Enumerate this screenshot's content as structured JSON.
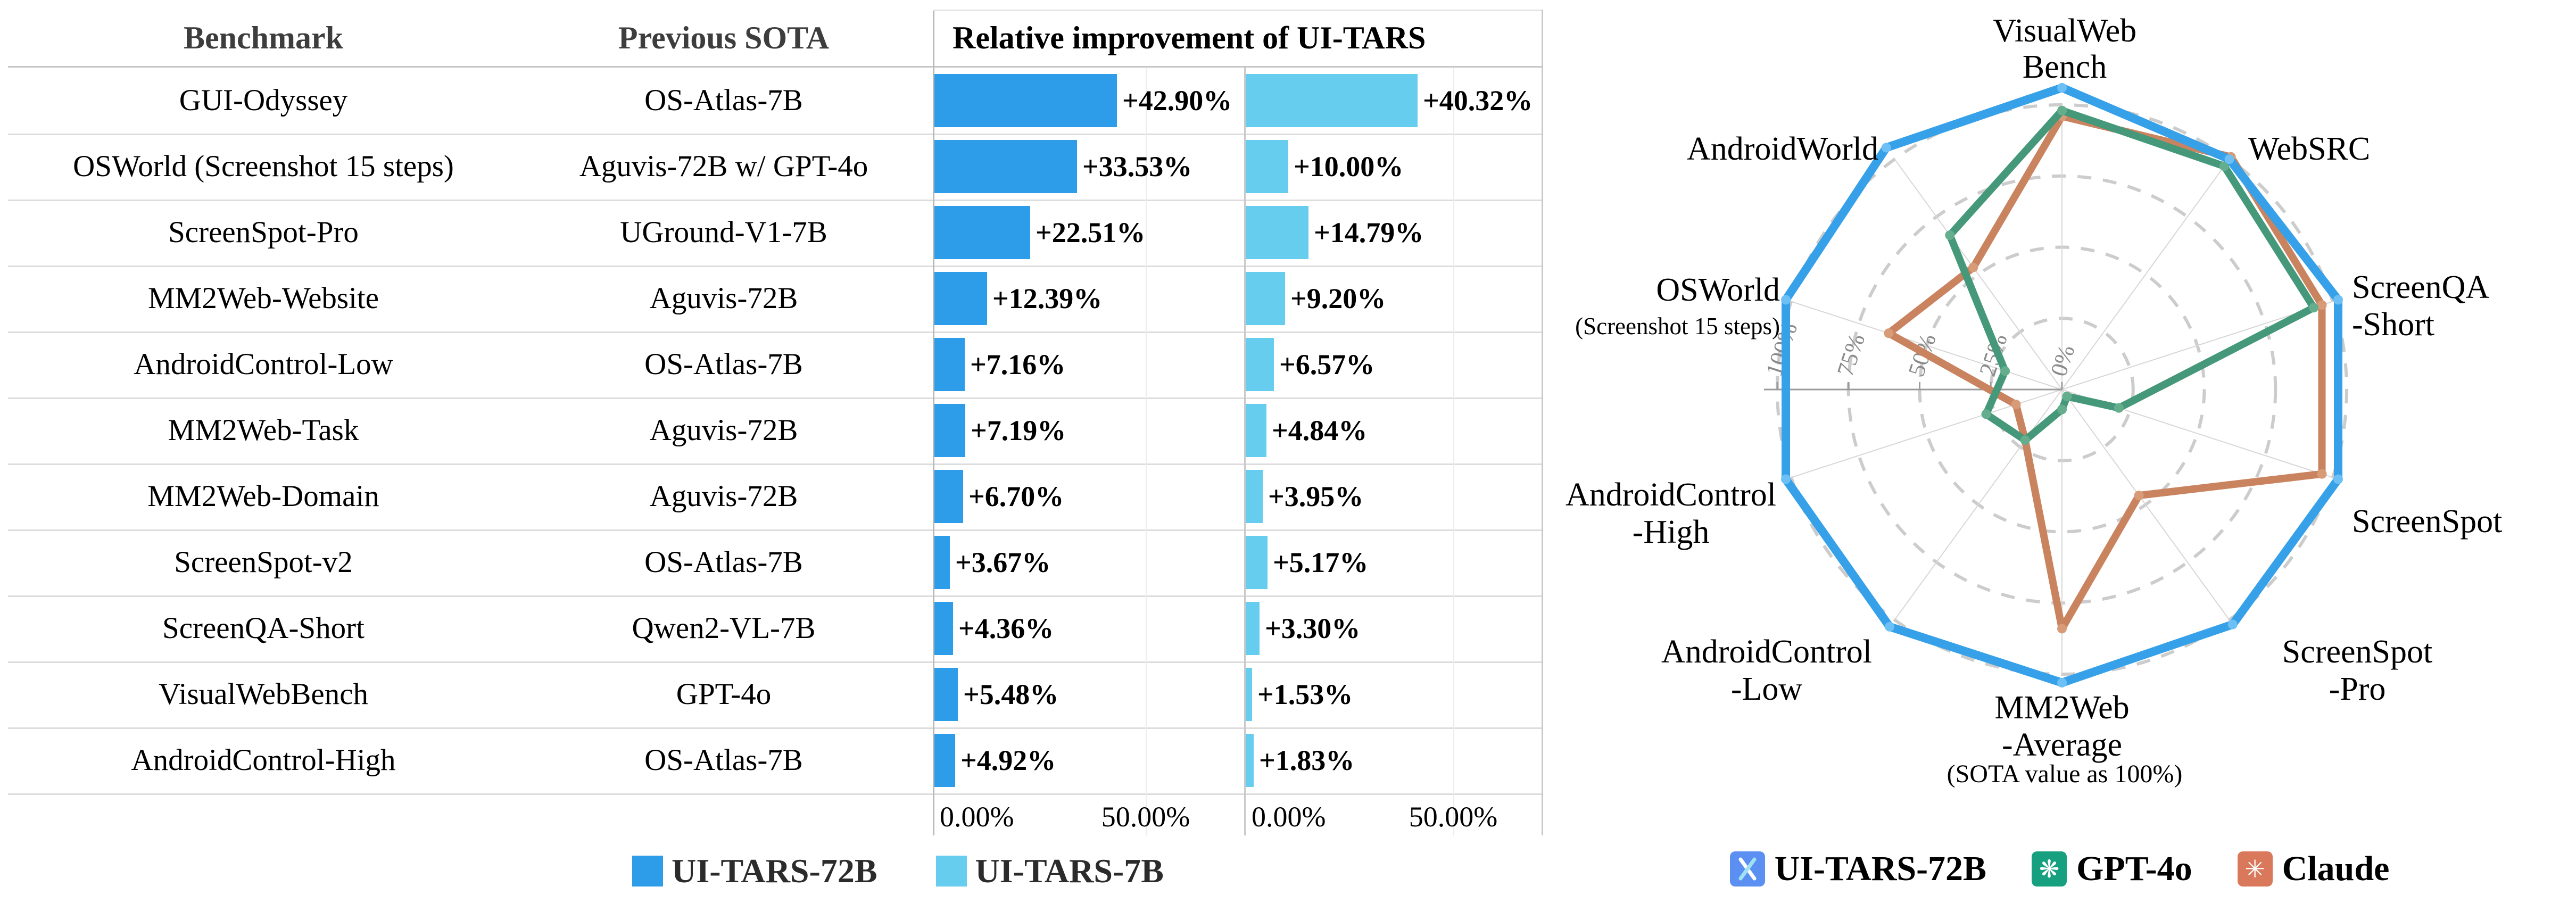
{
  "colors": {
    "ui_tars_72b_bar": "#2d9ce9",
    "ui_tars_7b_bar": "#66cdef",
    "radar_ui_tars": "#36a1e9",
    "radar_gpt4o": "#45987a",
    "radar_claude": "#c9835f",
    "icon_ui_tars": "#5c8ff2",
    "icon_gpt4o": "#16a07f",
    "icon_claude": "#d9785a"
  },
  "table": {
    "headers": {
      "benchmark": "Benchmark",
      "previous_sota": "Previous SOTA",
      "improvement": "Relative improvement of UI-TARS"
    },
    "axis": {
      "zero": "0.00%",
      "fifty": "50.00%"
    },
    "legend": [
      {
        "label": "UI-TARS-72B",
        "color": "#2d9ce9"
      },
      {
        "label": "UI-TARS-7B",
        "color": "#66cdef"
      }
    ],
    "rows": [
      {
        "benchmark": "GUI-Odyssey",
        "previous_sota": "OS-Atlas-7B",
        "v72": 42.9,
        "v7": 40.32,
        "label72": "+42.90%",
        "label7": "+40.32%"
      },
      {
        "benchmark": "OSWorld (Screenshot 15 steps)",
        "previous_sota": "Aguvis-72B w/ GPT-4o",
        "v72": 33.53,
        "v7": 10.0,
        "label72": "+33.53%",
        "label7": "+10.00%"
      },
      {
        "benchmark": "ScreenSpot-Pro",
        "previous_sota": "UGround-V1-7B",
        "v72": 22.51,
        "v7": 14.79,
        "label72": "+22.51%",
        "label7": "+14.79%"
      },
      {
        "benchmark": "MM2Web-Website",
        "previous_sota": "Aguvis-72B",
        "v72": 12.39,
        "v7": 9.2,
        "label72": "+12.39%",
        "label7": "+9.20%"
      },
      {
        "benchmark": "AndroidControl-Low",
        "previous_sota": "OS-Atlas-7B",
        "v72": 7.16,
        "v7": 6.57,
        "label72": "+7.16%",
        "label7": "+6.57%"
      },
      {
        "benchmark": "MM2Web-Task",
        "previous_sota": "Aguvis-72B",
        "v72": 7.19,
        "v7": 4.84,
        "label72": "+7.19%",
        "label7": "+4.84%"
      },
      {
        "benchmark": "MM2Web-Domain",
        "previous_sota": "Aguvis-72B",
        "v72": 6.7,
        "v7": 3.95,
        "label72": "+6.70%",
        "label7": "+3.95%"
      },
      {
        "benchmark": "ScreenSpot-v2",
        "previous_sota": "OS-Atlas-7B",
        "v72": 3.67,
        "v7": 5.17,
        "label72": "+3.67%",
        "label7": "+5.17%"
      },
      {
        "benchmark": "ScreenQA-Short",
        "previous_sota": "Qwen2-VL-7B",
        "v72": 4.36,
        "v7": 3.3,
        "label72": "+4.36%",
        "label7": "+3.30%"
      },
      {
        "benchmark": "VisualWebBench",
        "previous_sota": "GPT-4o",
        "v72": 5.48,
        "v7": 1.53,
        "label72": "+5.48%",
        "label7": "+1.53%"
      },
      {
        "benchmark": "AndroidControl-High",
        "previous_sota": "OS-Atlas-7B",
        "v72": 4.92,
        "v7": 1.83,
        "label72": "+4.92%",
        "label7": "+1.83%"
      }
    ]
  },
  "radar": {
    "caption": "(SOTA value as 100%)",
    "legend": [
      {
        "label": "UI-TARS-72B",
        "icon": "ui-tars-logo-icon",
        "color": "#5c8ff2",
        "glyph": "⚡"
      },
      {
        "label": "GPT-4o",
        "icon": "openai-logo-icon",
        "color": "#16a07f",
        "glyph": "❋"
      },
      {
        "label": "Claude",
        "icon": "claude-logo-icon",
        "color": "#d9785a",
        "glyph": "✳"
      }
    ]
  },
  "chart_data": [
    {
      "type": "bar",
      "title": "Relative improvement of UI-TARS",
      "orientation": "horizontal",
      "unit": "%",
      "xticks": [
        "0.00%",
        "50.00%"
      ],
      "xlim": [
        0,
        72
      ],
      "grid": true,
      "categories": [
        "GUI-Odyssey",
        "OSWorld (Screenshot 15 steps)",
        "ScreenSpot-Pro",
        "MM2Web-Website",
        "AndroidControl-Low",
        "MM2Web-Task",
        "MM2Web-Domain",
        "ScreenSpot-v2",
        "ScreenQA-Short",
        "VisualWebBench",
        "AndroidControl-High"
      ],
      "series": [
        {
          "name": "UI-TARS-72B",
          "color": "#2d9ce9",
          "values": [
            42.9,
            33.53,
            22.51,
            12.39,
            7.16,
            7.19,
            6.7,
            3.67,
            4.36,
            5.48,
            4.92
          ]
        },
        {
          "name": "UI-TARS-7B",
          "color": "#66cdef",
          "values": [
            40.32,
            10.0,
            14.79,
            9.2,
            6.57,
            4.84,
            3.95,
            5.17,
            3.3,
            1.53,
            1.83
          ]
        }
      ]
    },
    {
      "type": "radar",
      "title": "(SOTA value as 100%)",
      "rmax": 112,
      "radial_ticks": [
        "0%",
        "25%",
        "50%",
        "75%",
        "100%"
      ],
      "grid": "dashed-circles",
      "legend_position": "bottom",
      "categories": [
        "VisualWebBench",
        "WebSRC",
        "ScreenQA-Short",
        "ScreenSpot",
        "ScreenSpot-Pro",
        "MM2Web-Average",
        "AndroidControl-Low",
        "AndroidControl-High",
        "OSWorld (Screenshot 15 steps)",
        "AndroidWorld"
      ],
      "categories_display": [
        [
          "VisualWeb",
          "Bench"
        ],
        [
          "WebSRC"
        ],
        [
          "ScreenQA",
          "-Short"
        ],
        [
          "ScreenSpot"
        ],
        [
          "ScreenSpot",
          "-Pro"
        ],
        [
          "MM2Web",
          "-Average"
        ],
        [
          "AndroidControl",
          "-Low"
        ],
        [
          "AndroidControl",
          "-High"
        ],
        [
          "OSWorld",
          "(Screenshot 15 steps)"
        ],
        [
          "AndroidWorld"
        ]
      ],
      "series": [
        {
          "name": "UI-TARS-72B",
          "color": "#36a1e9",
          "values": [
            106,
            100,
            102,
            102,
            102,
            103,
            103,
            102,
            102,
            105
          ]
        },
        {
          "name": "GPT-4o",
          "color": "#45987a",
          "values": [
            98,
            97,
            93,
            21,
            3,
            7,
            22,
            28,
            21,
            67
          ]
        },
        {
          "name": "Claude",
          "color": "#c9835f",
          "values": [
            96,
            101,
            96,
            96,
            46,
            84,
            22,
            17,
            64,
            53
          ]
        }
      ]
    }
  ]
}
